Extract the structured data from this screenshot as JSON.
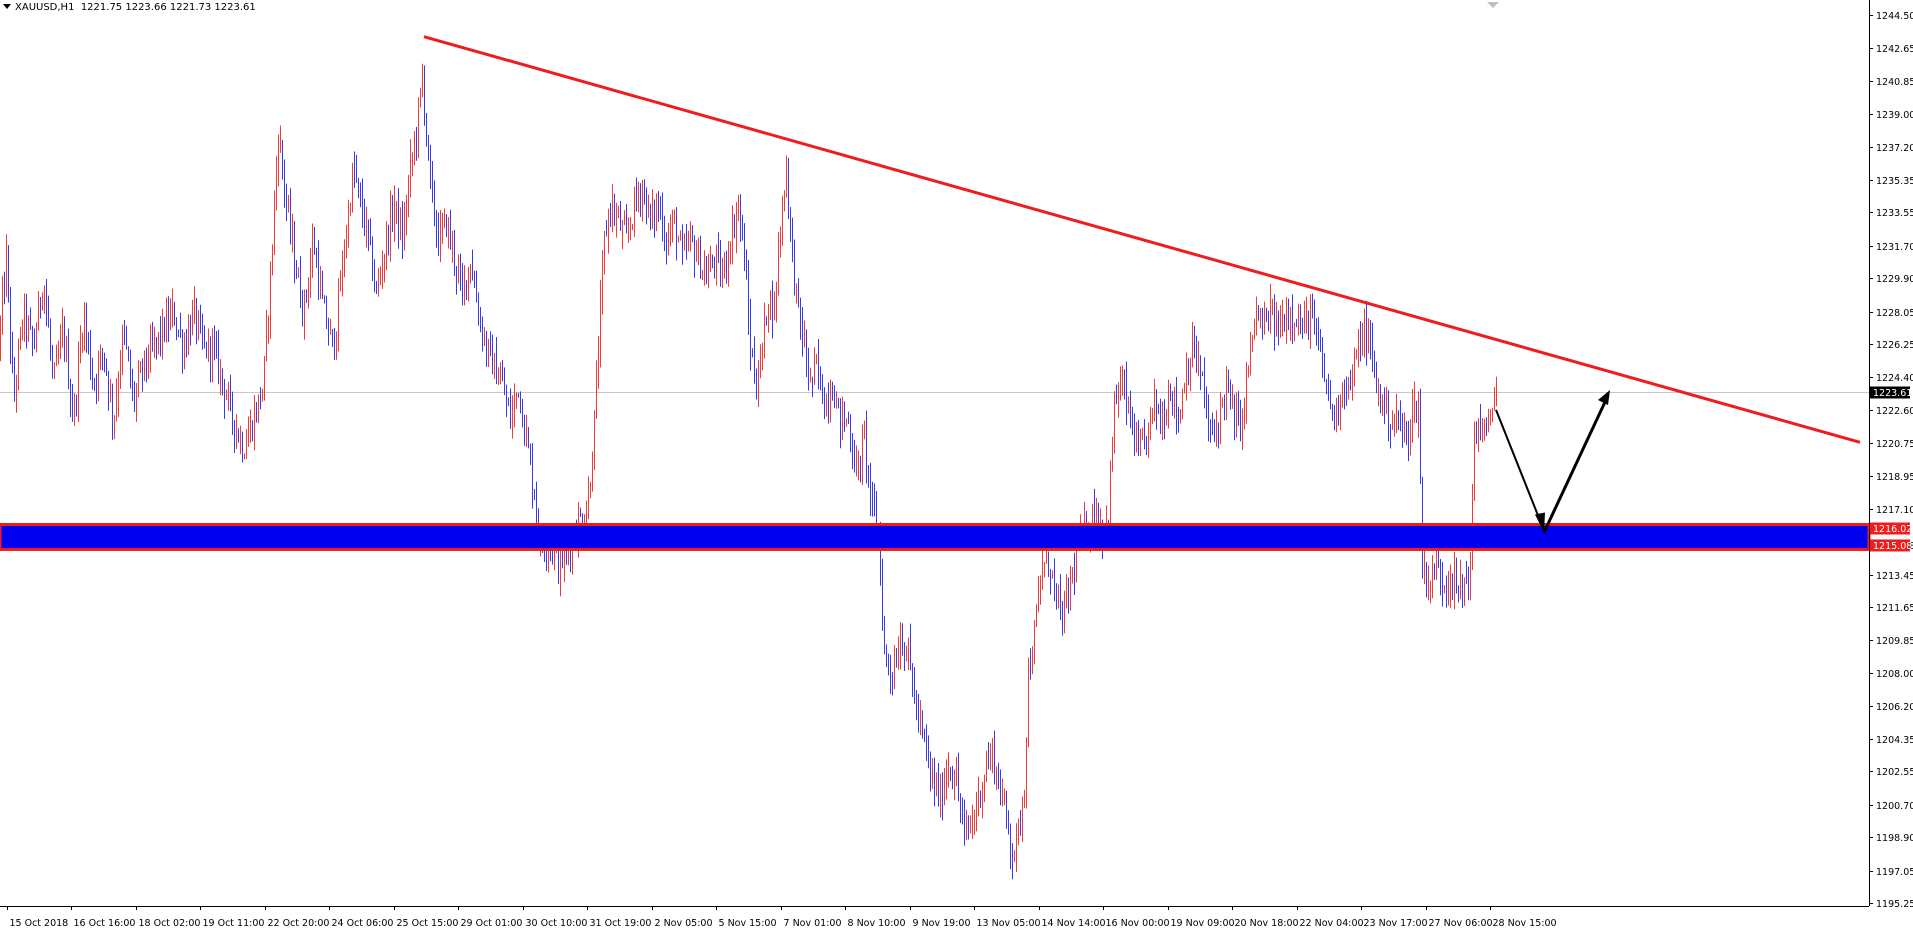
{
  "header": {
    "symbol": "XAUUSD,H1",
    "ohlc": "1221.75 1223.66 1221.73 1223.61"
  },
  "colors": {
    "bull": "#ef3b3b",
    "bear": "#3a3ae8",
    "trendline": "#ee1c1c",
    "zone_fill": "#0000f0",
    "zone_border": "#ee1c1c",
    "arrow": "#000000",
    "grid_line": "#c8c8c8",
    "axis": "#000000"
  },
  "chart_data": {
    "type": "candlestick",
    "title": "",
    "ylim": [
      1195.25,
      1244.5
    ],
    "y_ticks": [
      "1244.50",
      "1242.65",
      "1240.85",
      "1239.00",
      "1237.20",
      "1235.35",
      "1233.55",
      "1231.70",
      "1229.90",
      "1228.05",
      "1226.25",
      "1224.40",
      "1222.60",
      "1220.75",
      "1218.95",
      "1217.10",
      "1215.08",
      "1213.45",
      "1211.65",
      "1209.85",
      "1208.00",
      "1206.20",
      "1204.35",
      "1202.55",
      "1200.70",
      "1198.90",
      "1197.05",
      "1195.25"
    ],
    "x_ticks": [
      "15 Oct 2018",
      "16 Oct 16:00",
      "18 Oct 02:00",
      "19 Oct 11:00",
      "22 Oct 20:00",
      "24 Oct 06:00",
      "25 Oct 15:00",
      "29 Oct 01:00",
      "30 Oct 10:00",
      "31 Oct 19:00",
      "2 Nov 05:00",
      "5 Nov 15:00",
      "7 Nov 01:00",
      "8 Nov 10:00",
      "9 Nov 19:00",
      "13 Nov 05:00",
      "14 Nov 14:00",
      "16 Nov 00:00",
      "19 Nov 09:00",
      "20 Nov 18:00",
      "22 Nov 04:00",
      "23 Nov 17:00",
      "27 Nov 06:00",
      "28 Nov 15:00"
    ],
    "current_price": 1223.61,
    "current_price_label": "1223.61",
    "zone": {
      "high": 1216.02,
      "low": 1215.08,
      "high_label": "1216.02",
      "low_label": "1215.08"
    },
    "trendline": {
      "from": {
        "bar": 424,
        "price": 1243.3
      },
      "to": {
        "bar": 1860,
        "price": 1220.8
      }
    },
    "arrow": {
      "start": {
        "bar": 1496,
        "price": 1222.6
      },
      "mid": {
        "bar": 1544,
        "price": 1215.8
      },
      "end": {
        "bar": 1610,
        "price": 1223.7
      }
    },
    "path": [
      [
        0,
        1226
      ],
      [
        8,
        1231
      ],
      [
        15,
        1223
      ],
      [
        25,
        1228
      ],
      [
        35,
        1226
      ],
      [
        45,
        1230
      ],
      [
        55,
        1224
      ],
      [
        65,
        1227
      ],
      [
        75,
        1222
      ],
      [
        85,
        1228
      ],
      [
        95,
        1224
      ],
      [
        105,
        1226
      ],
      [
        115,
        1222
      ],
      [
        125,
        1227
      ],
      [
        135,
        1223
      ],
      [
        145,
        1225
      ],
      [
        155,
        1226
      ],
      [
        165,
        1227
      ],
      [
        175,
        1228
      ],
      [
        185,
        1226
      ],
      [
        195,
        1228
      ],
      [
        205,
        1226
      ],
      [
        215,
        1226
      ],
      [
        225,
        1224
      ],
      [
        235,
        1222
      ],
      [
        245,
        1220.5
      ],
      [
        255,
        1222
      ],
      [
        265,
        1224
      ],
      [
        272,
        1230
      ],
      [
        280,
        1238
      ],
      [
        288,
        1234
      ],
      [
        296,
        1231
      ],
      [
        305,
        1228
      ],
      [
        315,
        1232
      ],
      [
        325,
        1228
      ],
      [
        335,
        1226
      ],
      [
        345,
        1231
      ],
      [
        355,
        1236
      ],
      [
        362,
        1234
      ],
      [
        370,
        1232
      ],
      [
        378,
        1229
      ],
      [
        388,
        1232
      ],
      [
        396,
        1234
      ],
      [
        404,
        1232
      ],
      [
        412,
        1236
      ],
      [
        418,
        1238
      ],
      [
        424,
        1241
      ],
      [
        432,
        1235
      ],
      [
        440,
        1232
      ],
      [
        448,
        1233
      ],
      [
        456,
        1231
      ],
      [
        464,
        1229
      ],
      [
        472,
        1231
      ],
      [
        480,
        1228
      ],
      [
        488,
        1226
      ],
      [
        496,
        1225
      ],
      [
        504,
        1224
      ],
      [
        512,
        1222
      ],
      [
        520,
        1224
      ],
      [
        528,
        1221
      ],
      [
        536,
        1218
      ],
      [
        542,
        1215
      ],
      [
        550,
        1215.5
      ],
      [
        560,
        1214
      ],
      [
        568,
        1214.5
      ],
      [
        576,
        1216
      ],
      [
        582,
        1216.5
      ],
      [
        588,
        1217
      ],
      [
        594,
        1220
      ],
      [
        600,
        1226
      ],
      [
        606,
        1232
      ],
      [
        612,
        1234
      ],
      [
        620,
        1233
      ],
      [
        628,
        1232
      ],
      [
        636,
        1234
      ],
      [
        644,
        1235
      ],
      [
        652,
        1233
      ],
      [
        660,
        1234
      ],
      [
        668,
        1232
      ],
      [
        676,
        1233
      ],
      [
        684,
        1231
      ],
      [
        692,
        1232
      ],
      [
        700,
        1231
      ],
      [
        708,
        1230
      ],
      [
        716,
        1231
      ],
      [
        724,
        1230
      ],
      [
        732,
        1232
      ],
      [
        740,
        1234
      ],
      [
        746,
        1231
      ],
      [
        752,
        1226
      ],
      [
        758,
        1224
      ],
      [
        764,
        1226
      ],
      [
        770,
        1229
      ],
      [
        776,
        1228
      ],
      [
        782,
        1233
      ],
      [
        788,
        1236
      ],
      [
        794,
        1231
      ],
      [
        800,
        1228
      ],
      [
        806,
        1226
      ],
      [
        812,
        1224
      ],
      [
        818,
        1225
      ],
      [
        826,
        1223
      ],
      [
        834,
        1224
      ],
      [
        842,
        1222
      ],
      [
        850,
        1222
      ],
      [
        858,
        1219
      ],
      [
        866,
        1221
      ],
      [
        874,
        1217
      ],
      [
        880,
        1216
      ],
      [
        886,
        1209
      ],
      [
        894,
        1208
      ],
      [
        902,
        1210
      ],
      [
        910,
        1209
      ],
      [
        918,
        1206
      ],
      [
        926,
        1204
      ],
      [
        934,
        1202
      ],
      [
        942,
        1201
      ],
      [
        950,
        1203
      ],
      [
        958,
        1202
      ],
      [
        966,
        1199
      ],
      [
        972,
        1199.5
      ],
      [
        980,
        1201
      ],
      [
        988,
        1203
      ],
      [
        994,
        1203.5
      ],
      [
        1000,
        1202
      ],
      [
        1008,
        1200
      ],
      [
        1014,
        1198
      ],
      [
        1020,
        1199
      ],
      [
        1026,
        1202
      ],
      [
        1030,
        1208
      ],
      [
        1036,
        1210
      ],
      [
        1044,
        1214
      ],
      [
        1052,
        1214
      ],
      [
        1058,
        1212
      ],
      [
        1064,
        1211
      ],
      [
        1072,
        1213
      ],
      [
        1080,
        1215
      ],
      [
        1088,
        1216
      ],
      [
        1096,
        1217
      ],
      [
        1104,
        1216
      ],
      [
        1110,
        1216.5
      ],
      [
        1116,
        1223
      ],
      [
        1124,
        1224
      ],
      [
        1132,
        1222
      ],
      [
        1140,
        1220
      ],
      [
        1148,
        1221
      ],
      [
        1156,
        1223
      ],
      [
        1164,
        1222
      ],
      [
        1172,
        1224
      ],
      [
        1180,
        1222
      ],
      [
        1188,
        1225
      ],
      [
        1196,
        1226
      ],
      [
        1204,
        1224
      ],
      [
        1212,
        1221
      ],
      [
        1220,
        1222
      ],
      [
        1228,
        1224
      ],
      [
        1236,
        1222
      ],
      [
        1244,
        1222
      ],
      [
        1252,
        1226
      ],
      [
        1258,
        1228
      ],
      [
        1264,
        1227
      ],
      [
        1272,
        1228
      ],
      [
        1280,
        1227
      ],
      [
        1288,
        1228
      ],
      [
        1296,
        1228
      ],
      [
        1304,
        1227
      ],
      [
        1312,
        1228
      ],
      [
        1320,
        1226
      ],
      [
        1328,
        1224
      ],
      [
        1336,
        1222
      ],
      [
        1344,
        1224
      ],
      [
        1352,
        1224
      ],
      [
        1360,
        1226
      ],
      [
        1366,
        1227
      ],
      [
        1372,
        1226
      ],
      [
        1378,
        1224
      ],
      [
        1384,
        1223
      ],
      [
        1392,
        1222
      ],
      [
        1400,
        1222
      ],
      [
        1408,
        1221
      ],
      [
        1414,
        1222.5
      ],
      [
        1420,
        1223
      ],
      [
        1424,
        1214
      ],
      [
        1430,
        1213
      ],
      [
        1438,
        1214
      ],
      [
        1446,
        1213
      ],
      [
        1452,
        1213.5
      ],
      [
        1460,
        1212.5
      ],
      [
        1466,
        1213
      ],
      [
        1472,
        1214
      ],
      [
        1476,
        1221
      ],
      [
        1482,
        1222
      ],
      [
        1488,
        1221
      ],
      [
        1496,
        1223.6
      ]
    ]
  }
}
